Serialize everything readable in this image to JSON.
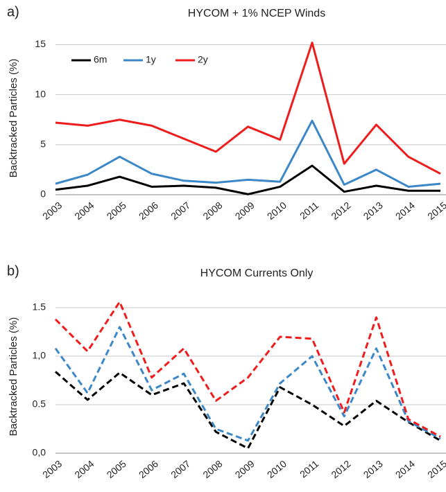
{
  "chart_data": [
    {
      "type": "line",
      "label": "a)",
      "title": "HYCOM + 1% NCEP Winds",
      "ylabel": "Backtracked Particles (%)",
      "categories": [
        "2003",
        "2004",
        "2005",
        "2006",
        "2007",
        "2008",
        "2009",
        "2010",
        "2011",
        "2012",
        "2013",
        "2014",
        "2015"
      ],
      "series": [
        {
          "name": "6m",
          "color": "#000000",
          "values": [
            0.5,
            0.9,
            1.8,
            0.8,
            0.9,
            0.7,
            0.05,
            0.8,
            2.9,
            0.3,
            0.9,
            0.4,
            0.4
          ]
        },
        {
          "name": "1y",
          "color": "#3c87c8",
          "values": [
            1.1,
            2.0,
            3.8,
            2.1,
            1.4,
            1.2,
            1.5,
            1.3,
            7.4,
            1.0,
            2.5,
            0.8,
            1.1
          ]
        },
        {
          "name": "2y",
          "color": "#ee1c1c",
          "values": [
            7.2,
            6.9,
            7.5,
            6.9,
            5.6,
            4.3,
            6.8,
            5.5,
            15.2,
            3.1,
            7.0,
            3.8,
            2.1
          ]
        }
      ],
      "ylim": [
        0,
        16
      ],
      "yticks": [
        0,
        5,
        10,
        15
      ],
      "grid": true,
      "legend": "upper left",
      "line_style": "solid"
    },
    {
      "type": "line",
      "label": "b)",
      "title": "HYCOM Currents Only",
      "ylabel": "Backtracked Particles (%)",
      "categories": [
        "2003",
        "2004",
        "2005",
        "2006",
        "2007",
        "2008",
        "2009",
        "2010",
        "2011",
        "2012",
        "2013",
        "2014",
        "2015"
      ],
      "series": [
        {
          "color": "#000000",
          "values": [
            0.84,
            0.55,
            0.83,
            0.6,
            0.72,
            0.22,
            0.05,
            0.68,
            0.5,
            0.28,
            0.54,
            0.32,
            0.13
          ]
        },
        {
          "color": "#3c87c8",
          "values": [
            1.08,
            0.62,
            1.3,
            0.65,
            0.82,
            0.25,
            0.13,
            0.72,
            1.0,
            0.38,
            1.08,
            0.33,
            0.15
          ]
        },
        {
          "color": "#ee1c1c",
          "values": [
            1.38,
            1.05,
            1.56,
            0.78,
            1.08,
            0.54,
            0.78,
            1.2,
            1.18,
            0.42,
            1.4,
            0.35,
            0.17
          ]
        }
      ],
      "ylim": [
        0,
        1.65
      ],
      "yticks": [
        {
          "value": 0,
          "label": "0,0"
        },
        {
          "value": 0.5,
          "label": "0.5"
        },
        {
          "value": 1,
          "label": "1,0"
        },
        {
          "value": 1.5,
          "label": "1.5"
        }
      ],
      "grid": true,
      "line_style": "dashed"
    }
  ]
}
